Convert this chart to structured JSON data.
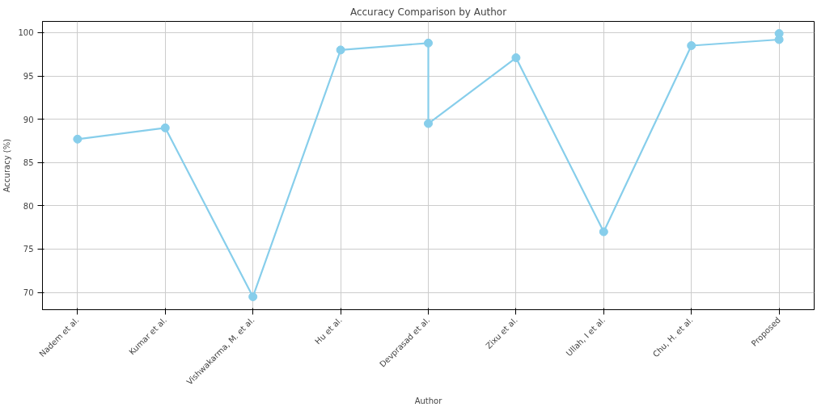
{
  "chart_data": {
    "type": "line",
    "title": "Accuracy Comparison by Author",
    "xlabel": "Author",
    "ylabel": "Accuracy (%)",
    "categories": [
      "Nadem et al.",
      "Kumar et al.",
      "Vishwakarma, M. et al.",
      "Hu et al.",
      "Devprasad et al.",
      "Zixu et al.",
      "Ullah, I et al.",
      "Chu, H. et al.",
      "Proposed"
    ],
    "series": [
      {
        "color": "#87ceeb",
        "x": [
          "Nadem et al.",
          "Kumar et al.",
          "Vishwakarma, M. et al.",
          "Hu et al.",
          "Devprasad et al.",
          "Devprasad et al.",
          "Zixu et al.",
          "Ullah, I et al.",
          "Chu, H. et al.",
          "Proposed",
          "Proposed"
        ],
        "values": [
          87.7,
          89.0,
          69.5,
          98.0,
          98.8,
          89.5,
          97.1,
          77.0,
          98.5,
          99.2,
          99.9
        ]
      }
    ],
    "ylim": [
      68,
      101.3
    ],
    "yticks": [
      70,
      75,
      80,
      85,
      90,
      95,
      100
    ],
    "grid": true,
    "marker": "circle",
    "line_style": "solid"
  }
}
